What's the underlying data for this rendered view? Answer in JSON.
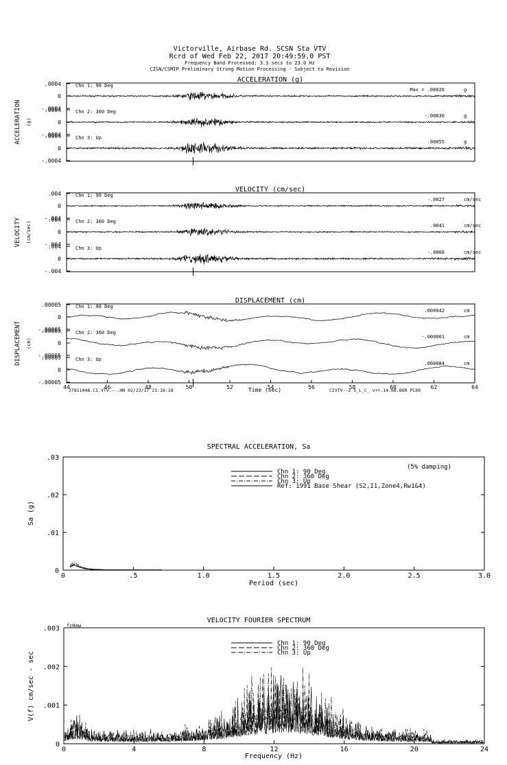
{
  "header": {
    "line1": "Victorville, Airbase Rd.    SCSN Sta VTV",
    "line2": "Rcrd of Wed Feb 22, 2017 20:49:59.0 PST",
    "line3": "Frequency Band Processed: 3.3 secs to 23.0 Hz",
    "line4": "CISN/CSMIP Preliminary Strong Motion Processing - Subject to Revision"
  },
  "footer": {
    "left": "37811048.CI.VTV.--.HN 02/22/17 21:16:18",
    "right": "CIVTV--Z  S_L_C_  v++.14.68.86R PC89"
  },
  "chart_data": [
    {
      "type": "line",
      "title": "ACCELERATION (g)",
      "ylabel": "ACCELERATION",
      "yunit": "(g)",
      "xlim": [
        44,
        64
      ],
      "unit": "g",
      "channels": [
        {
          "name": "Chn 1: 90 Deg",
          "max_label": "Max =  .00020",
          "peak": 0.0002,
          "ticks": [
            ".0004",
            "0",
            "-.0004"
          ],
          "ylim": [
            -0.0004,
            0.0004
          ]
        },
        {
          "name": "Chn 2: 360 Deg",
          "max_label": "-.00030",
          "peak": -0.0003,
          "ticks": [
            ".0004",
            "0",
            "-.0004"
          ],
          "ylim": [
            -0.0004,
            0.0004
          ]
        },
        {
          "name": "Chn 3: Up",
          "max_label": ".00055",
          "peak": 0.00055,
          "ticks": [
            ".0004",
            "0",
            "-.0004"
          ],
          "ylim": [
            -0.0004,
            0.0004
          ]
        }
      ]
    },
    {
      "type": "line",
      "title": "VELOCITY (cm/sec)",
      "ylabel": "VELOCITY",
      "yunit": "(cm/sec)",
      "xlim": [
        44,
        64
      ],
      "unit": "cm/sec",
      "channels": [
        {
          "name": "Chn 1: 90 Deg",
          "max_label": "-.0027",
          "peak": -0.0027,
          "ticks": [
            ".004",
            "0",
            "-.004"
          ],
          "ylim": [
            -0.004,
            0.004
          ]
        },
        {
          "name": "Chn 2: 360 Deg",
          "max_label": ".0041",
          "peak": 0.0041,
          "ticks": [
            ".004",
            "0",
            "-.004"
          ],
          "ylim": [
            -0.004,
            0.004
          ]
        },
        {
          "name": "Chn 3: Up",
          "max_label": "-.0066",
          "peak": -0.0066,
          "ticks": [
            ".004",
            "0",
            "-.004"
          ],
          "ylim": [
            -0.004,
            0.004
          ]
        }
      ]
    },
    {
      "type": "line",
      "title": "DISPLACEMENT (cm)",
      "ylabel": "DISPLACEMENT",
      "yunit": "(cm)",
      "xlabel": "Time (sec)",
      "xlim": [
        44,
        64
      ],
      "xticks": [
        "44",
        "46",
        "48",
        "50",
        "52",
        "54",
        "56",
        "58",
        "60",
        "62",
        "64"
      ],
      "unit": "cm",
      "channels": [
        {
          "name": "Chn 1: 90 Deg",
          "max_label": ".000042",
          "peak": 4.2e-05,
          "ticks": [
            ".00005",
            "0",
            "-.00005"
          ],
          "ylim": [
            -5e-05,
            5e-05
          ]
        },
        {
          "name": "Chn 2: 360 Deg",
          "max_label": "-.000061",
          "peak": -6.1e-05,
          "ticks": [
            ".00005",
            "0",
            "-.00005"
          ],
          "ylim": [
            -5e-05,
            5e-05
          ]
        },
        {
          "name": "Chn 3: Up",
          "max_label": ".000084",
          "peak": 8.4e-05,
          "ticks": [
            ".00005",
            "0",
            "-.00005"
          ],
          "ylim": [
            -5e-05,
            5e-05
          ]
        }
      ]
    },
    {
      "type": "line",
      "title": "SPECTRAL ACCELERATION, Sa",
      "annotation": "(5% damping)",
      "xlabel": "Period (sec)",
      "ylabel": "Sa (g)",
      "xlim": [
        0,
        3.0
      ],
      "ylim": [
        0,
        0.03
      ],
      "xticks": [
        "0",
        ".5",
        "1.0",
        "1.5",
        "2.0",
        "2.5",
        "3.0"
      ],
      "yticks": [
        "0",
        ".01",
        ".02",
        ".03"
      ],
      "legend": [
        "Chn 1: 90 Deg",
        "Chn 2: 360 Deg",
        "Chn 3: Up",
        "Ref: 1991 Base Shear (S2,I1,Zone4,Rw1&4)"
      ],
      "series": [
        {
          "name": "Chn 1: 90 Deg",
          "x": [
            0.05,
            0.08,
            0.1,
            0.15,
            0.2,
            0.3,
            0.5,
            0.7
          ],
          "y": [
            0.0008,
            0.0014,
            0.001,
            0.0004,
            0.0002,
            0.0001,
            5e-05,
            3e-05
          ]
        },
        {
          "name": "Chn 2: 360 Deg",
          "x": [
            0.05,
            0.08,
            0.1,
            0.15,
            0.2,
            0.3,
            0.5,
            0.7
          ],
          "y": [
            0.0009,
            0.0016,
            0.0011,
            0.0005,
            0.0002,
            0.0001,
            5e-05,
            3e-05
          ]
        },
        {
          "name": "Chn 3: Up",
          "x": [
            0.05,
            0.08,
            0.1,
            0.15,
            0.2,
            0.3,
            0.5,
            0.7
          ],
          "y": [
            0.0012,
            0.0022,
            0.0015,
            0.0006,
            0.0003,
            0.0001,
            5e-05,
            3e-05
          ]
        }
      ]
    },
    {
      "type": "line",
      "title": "VELOCITY FOURIER SPECTRUM",
      "corner_label": "fcHaw",
      "xlabel": "Frequency (Hz)",
      "ylabel": "V(f)   cm/sec - sec",
      "xlim": [
        0,
        24
      ],
      "ylim": [
        0,
        0.003
      ],
      "xticks": [
        "0",
        "4",
        "8",
        "12",
        "16",
        "20",
        "24"
      ],
      "yticks": [
        "0",
        ".001",
        ".002",
        ".003"
      ],
      "legend": [
        "Chn 1: 90 Deg",
        "Chn 2: 360 Deg",
        "Chn 3: Up"
      ],
      "peak_frequency": 12,
      "peak_value": 0.0022
    }
  ]
}
